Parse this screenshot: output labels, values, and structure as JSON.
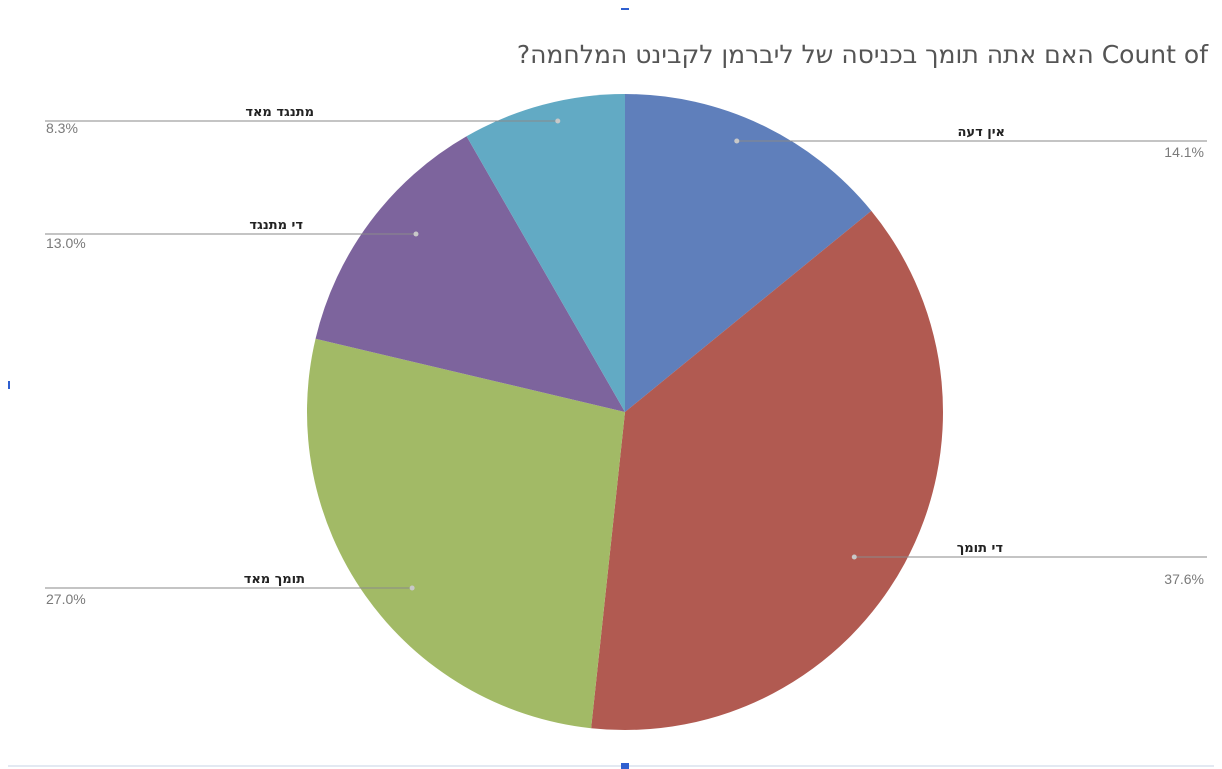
{
  "chart_data": {
    "type": "pie",
    "title": "?האם אתה תומך בכניסה של ליברמן לקבינט המלחמה Count of",
    "slices": [
      {
        "label": "אין דעה",
        "value": 14.1,
        "percent_label": "14.1%",
        "color": "#5f7fbb"
      },
      {
        "label": "די תומך",
        "value": 37.6,
        "percent_label": "37.6%",
        "color": "#b15a51"
      },
      {
        "label": "תומך מאד",
        "value": 27.0,
        "percent_label": "27.0%",
        "color": "#a2ba66"
      },
      {
        "label": "די מתנגד",
        "value": 13.0,
        "percent_label": "13.0%",
        "color": "#7d649d"
      },
      {
        "label": "מתנגד מאד",
        "value": 8.3,
        "percent_label": "8.3%",
        "color": "#62aac4"
      }
    ],
    "start": "12 o'clock",
    "direction": "clockwise",
    "legend": "none"
  }
}
